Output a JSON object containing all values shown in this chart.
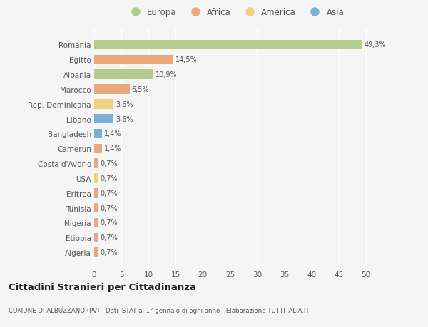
{
  "categories": [
    "Algeria",
    "Etiopia",
    "Nigeria",
    "Tunisia",
    "Eritrea",
    "USA",
    "Costa d'Avorio",
    "Camerun",
    "Bangladesh",
    "Libano",
    "Rep. Dominicana",
    "Marocco",
    "Albania",
    "Egitto",
    "Romania"
  ],
  "values": [
    0.7,
    0.7,
    0.7,
    0.7,
    0.7,
    0.7,
    0.7,
    1.4,
    1.4,
    3.6,
    3.6,
    6.5,
    10.9,
    14.5,
    49.3
  ],
  "colors": [
    "#e8a87c",
    "#e8a87c",
    "#e8a87c",
    "#e8a87c",
    "#e8a87c",
    "#f0d080",
    "#e8a87c",
    "#e8a87c",
    "#7bafd4",
    "#7bafd4",
    "#f0d080",
    "#e8a87c",
    "#b5cc8e",
    "#e8a87c",
    "#b5cc8e"
  ],
  "labels": [
    "0,7%",
    "0,7%",
    "0,7%",
    "0,7%",
    "0,7%",
    "0,7%",
    "0,7%",
    "1,4%",
    "1,4%",
    "3,6%",
    "3,6%",
    "6,5%",
    "10,9%",
    "14,5%",
    "49,3%"
  ],
  "legend_labels": [
    "Europa",
    "Africa",
    "America",
    "Asia"
  ],
  "legend_colors": [
    "#b5cc8e",
    "#e8a87c",
    "#f0d080",
    "#7bafd4"
  ],
  "xlim": [
    0,
    52
  ],
  "xticks": [
    0,
    5,
    10,
    15,
    20,
    25,
    30,
    35,
    40,
    45,
    50
  ],
  "title": "Cittadini Stranieri per Cittadinanza",
  "subtitle": "COMUNE DI ALBUZZANO (PV) - Dati ISTAT al 1° gennaio di ogni anno - Elaborazione TUTTITALIA.IT",
  "bg_color": "#f5f5f5",
  "bar_height": 0.65,
  "grid_color": "#ffffff",
  "text_color": "#555555",
  "title_color": "#222222"
}
